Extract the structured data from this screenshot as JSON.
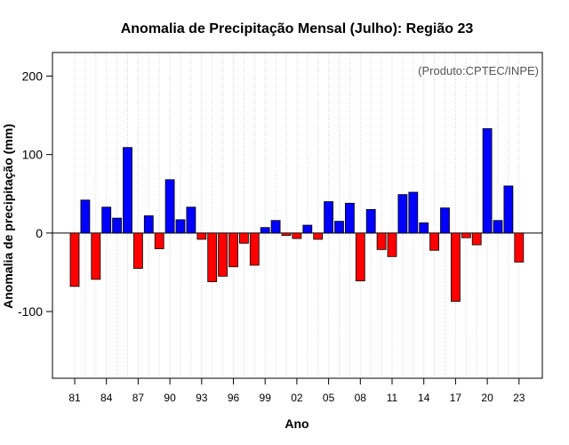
{
  "chart_data": {
    "type": "bar",
    "title": "Anomalia de Precipitação Mensal (Julho): Região 23",
    "xlabel": "Ano",
    "ylabel": "Anomalia de precipitação (mm)",
    "annotation": "(Produto:CPTEC/INPE)",
    "ylim": [
      -185,
      230
    ],
    "yticks": [
      -100,
      0,
      100,
      200
    ],
    "ytick_labels": [
      "-100",
      "0",
      "100",
      "200"
    ],
    "xtick_labels": [
      "81",
      "84",
      "87",
      "90",
      "93",
      "96",
      "99",
      "02",
      "05",
      "08",
      "11",
      "14",
      "17",
      "20",
      "23"
    ],
    "xtick_years": [
      1981,
      1984,
      1987,
      1990,
      1993,
      1996,
      1999,
      2002,
      2005,
      2008,
      2011,
      2014,
      2017,
      2020,
      2023
    ],
    "years": [
      1981,
      1982,
      1983,
      1984,
      1985,
      1986,
      1987,
      1988,
      1989,
      1990,
      1991,
      1992,
      1993,
      1994,
      1995,
      1996,
      1997,
      1998,
      1999,
      2000,
      2001,
      2002,
      2003,
      2004,
      2005,
      2006,
      2007,
      2008,
      2009,
      2010,
      2011,
      2012,
      2013,
      2014,
      2015,
      2016,
      2017,
      2018,
      2019,
      2020,
      2021,
      2022,
      2023
    ],
    "values": [
      -68,
      42,
      -59,
      33,
      19,
      109,
      -45,
      22,
      -20,
      68,
      17,
      33,
      -8,
      -62,
      -55,
      -43,
      -13,
      -41,
      7,
      16,
      -3,
      -7,
      10,
      -8,
      40,
      15,
      38,
      -61,
      30,
      -21,
      -30,
      49,
      52,
      13,
      -22,
      32,
      -87,
      -6,
      -15,
      133,
      16,
      60,
      -37
    ],
    "grid": true,
    "colors": {
      "positive": "#0000ff",
      "negative": "#ff0000",
      "grid": "#d3d3d3",
      "axis": "#000000"
    }
  }
}
